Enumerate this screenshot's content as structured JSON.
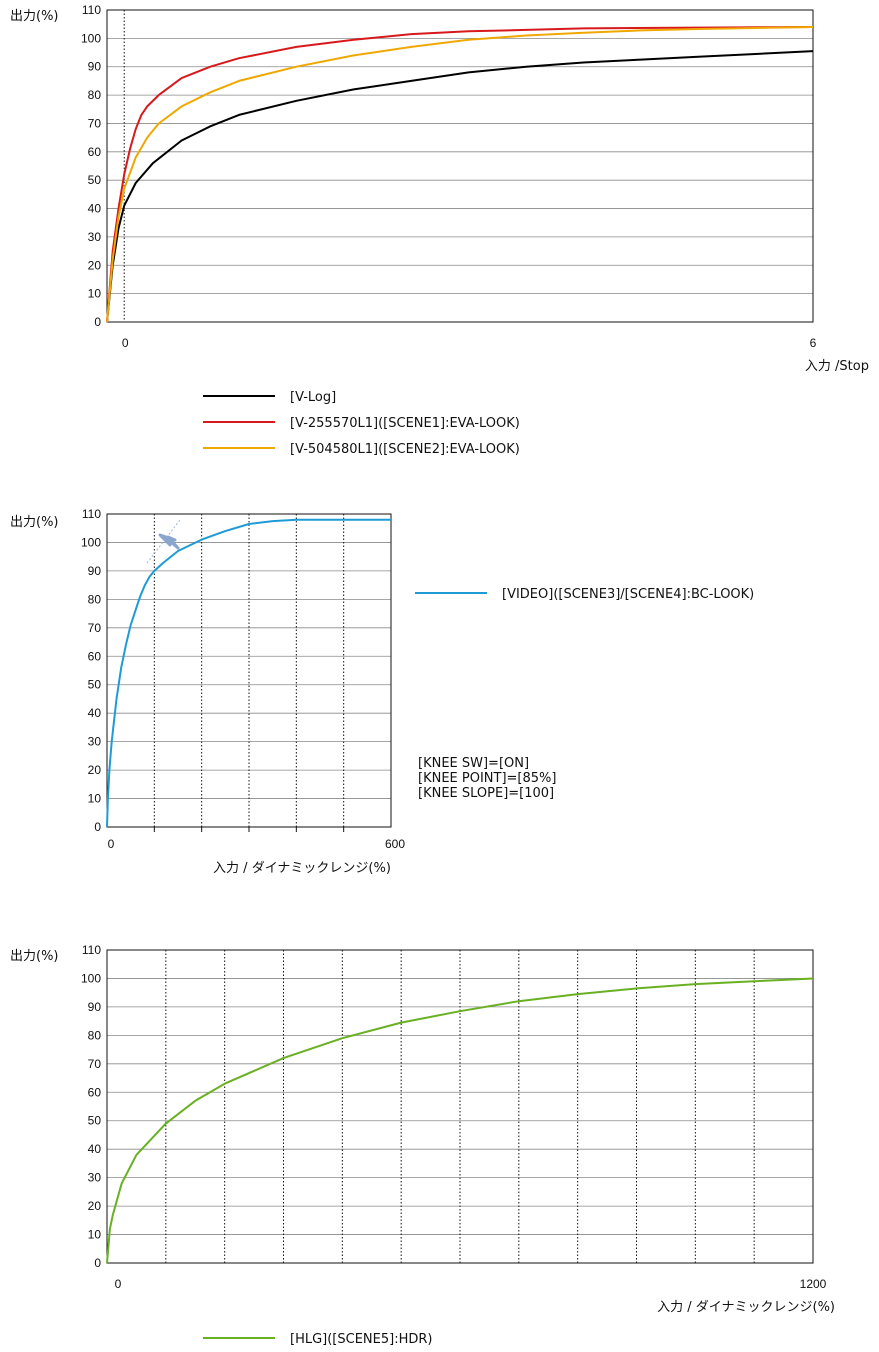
{
  "chart_data": [
    {
      "type": "line",
      "title": "",
      "ylabel": "出力(%)",
      "xlabel": "入力 /Stop",
      "ylim": [
        0,
        110
      ],
      "xlim": [
        -0.15,
        6
      ],
      "yticks": [
        0,
        10,
        20,
        30,
        40,
        50,
        60,
        70,
        80,
        90,
        100,
        110
      ],
      "xticks": [
        0,
        6
      ],
      "grid": "horizontal",
      "x_markers": [
        0
      ],
      "series": [
        {
          "name": "[V-Log]",
          "color": "#000000",
          "x": [
            -0.15,
            -0.1,
            -0.05,
            0,
            0.1,
            0.25,
            0.5,
            0.75,
            1.0,
            1.5,
            2.0,
            2.5,
            3.0,
            3.5,
            4.0,
            4.5,
            5.0,
            5.5,
            6.0
          ],
          "y": [
            0,
            20,
            33,
            41,
            49,
            56,
            64,
            69,
            73,
            78,
            82,
            85,
            88,
            90,
            91.5,
            92.5,
            93.5,
            94.5,
            95.5
          ]
        },
        {
          "name": "[V-255570L1]([SCENE1]:EVA-LOOK)",
          "color": "#d7191c",
          "x": [
            -0.15,
            -0.1,
            -0.05,
            0,
            0.05,
            0.1,
            0.15,
            0.2,
            0.3,
            0.5,
            0.75,
            1.0,
            1.5,
            2.0,
            2.5,
            3.0,
            3.5,
            4.0,
            5.0,
            6.0
          ],
          "y": [
            0,
            25,
            40,
            52,
            61,
            68,
            73,
            76,
            80,
            86,
            90,
            93,
            97,
            99.5,
            101.5,
            102.5,
            103,
            103.5,
            103.8,
            104
          ]
        },
        {
          "name": "[V-504580L1]([SCENE2]:EVA-LOOK)",
          "color": "#f0a800",
          "x": [
            -0.15,
            -0.1,
            -0.05,
            0,
            0.1,
            0.2,
            0.3,
            0.5,
            0.75,
            1.0,
            1.5,
            2.0,
            2.5,
            3.0,
            3.5,
            4.0,
            4.5,
            5.0,
            6.0
          ],
          "y": [
            0,
            22,
            37,
            47,
            58,
            65,
            70,
            76,
            81,
            85,
            90,
            94,
            97,
            99.5,
            101,
            102,
            102.8,
            103.3,
            104
          ]
        }
      ]
    },
    {
      "type": "line",
      "title": "",
      "ylabel": "出力(%)",
      "xlabel": "入力 / ダイナミックレンジ(%)",
      "ylim": [
        0,
        110
      ],
      "xlim": [
        0,
        600
      ],
      "yticks": [
        0,
        10,
        20,
        30,
        40,
        50,
        60,
        70,
        80,
        90,
        100,
        110
      ],
      "xticks": [
        0,
        600
      ],
      "grid": "horizontal",
      "x_markers": [
        100,
        200,
        300,
        400,
        500
      ],
      "series": [
        {
          "name": "[VIDEO]([SCENE3]/[SCENE4]:BC-LOOK)",
          "color": "#1e9bd7",
          "x": [
            0,
            2,
            5,
            10,
            20,
            30,
            40,
            50,
            60,
            70,
            80,
            90,
            100,
            120,
            150,
            200,
            250,
            300,
            350,
            400,
            500,
            600
          ],
          "y": [
            0,
            10,
            20,
            30,
            45,
            56,
            64,
            71,
            76,
            81,
            85,
            88,
            90,
            93,
            97,
            101,
            104,
            106.5,
            107.5,
            108,
            108,
            108
          ]
        }
      ],
      "annotations": [
        "[KNEE SW]=[ON]",
        "[KNEE POINT]=[85%]",
        "[KNEE SLOPE]=[100]"
      ]
    },
    {
      "type": "line",
      "title": "",
      "ylabel": "出力(%)",
      "xlabel": "入力 / ダイナミックレンジ(%)",
      "ylim": [
        0,
        110
      ],
      "xlim": [
        0,
        1200
      ],
      "yticks": [
        0,
        10,
        20,
        30,
        40,
        50,
        60,
        70,
        80,
        90,
        100,
        110
      ],
      "xticks": [
        0,
        1200
      ],
      "grid": "horizontal",
      "x_markers": [
        100,
        200,
        300,
        400,
        500,
        600,
        700,
        800,
        900,
        1000,
        1100
      ],
      "series": [
        {
          "name": "[HLG]([SCENE5]:HDR)",
          "color": "#6ab023",
          "x": [
            0,
            5,
            10,
            25,
            50,
            100,
            150,
            200,
            300,
            400,
            500,
            600,
            700,
            800,
            900,
            1000,
            1100,
            1200
          ],
          "y": [
            0,
            12,
            17,
            28,
            38,
            49,
            57,
            63,
            72,
            79,
            84.5,
            88.5,
            92,
            94.5,
            96.5,
            98,
            99,
            100
          ]
        }
      ]
    }
  ]
}
